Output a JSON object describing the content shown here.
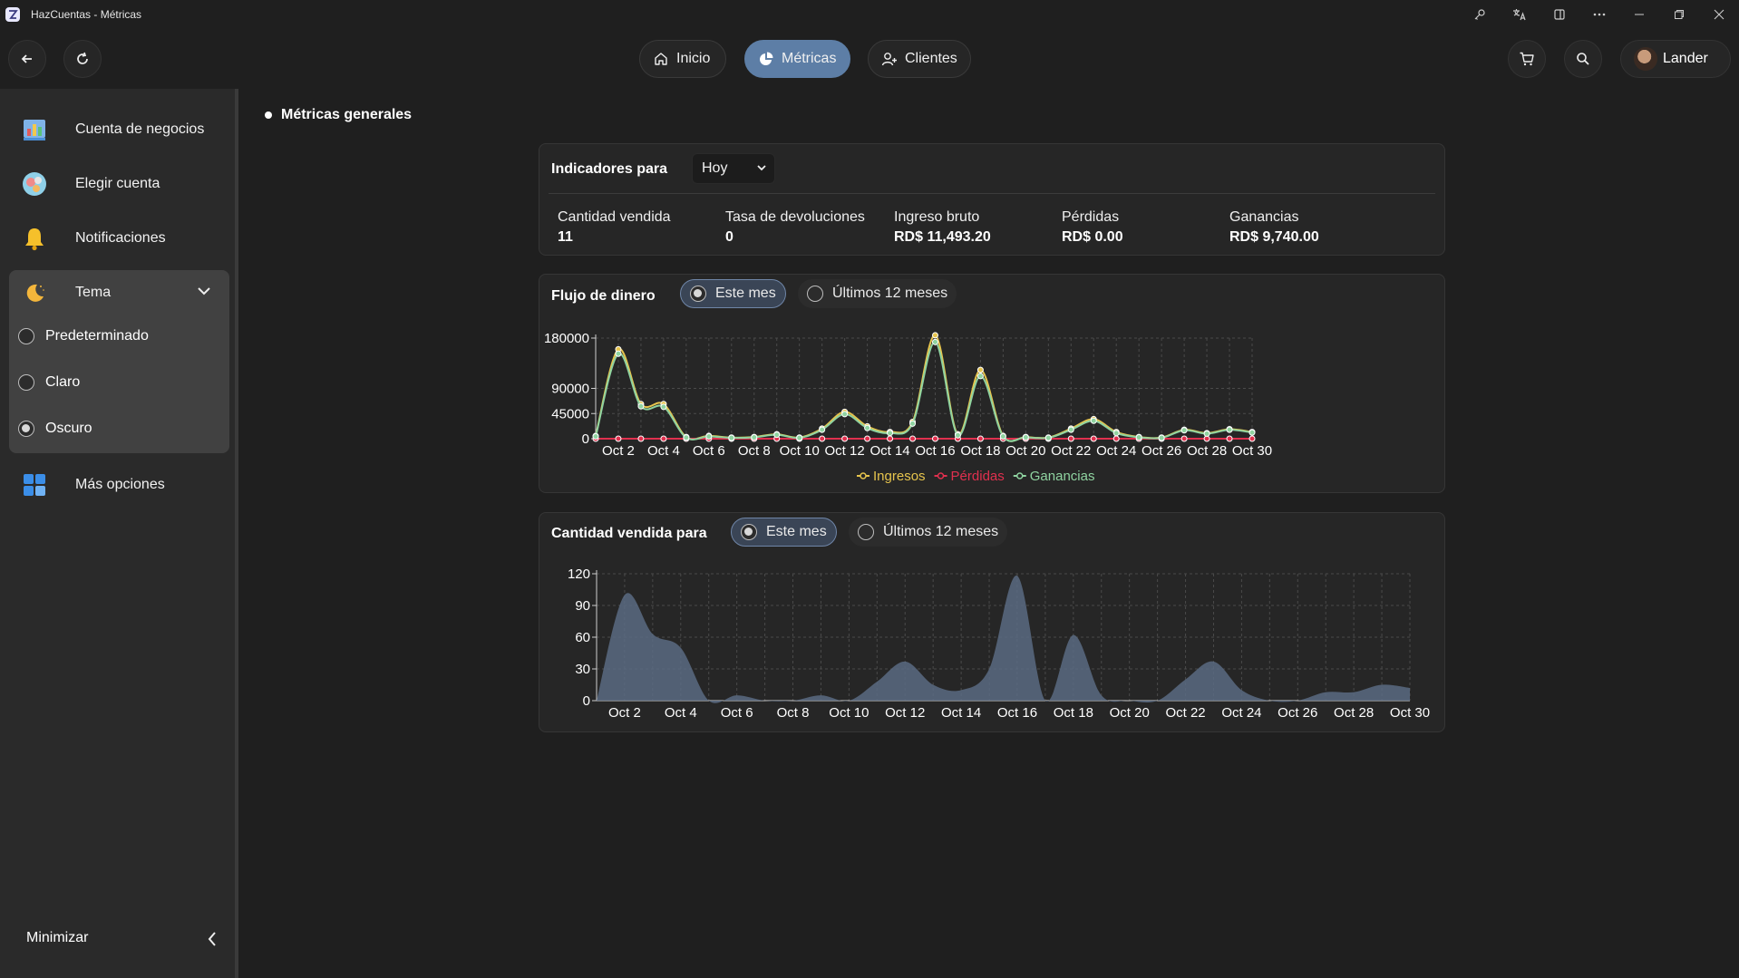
{
  "window": {
    "title": "HazCuentas - Métricas",
    "controls": [
      "key-icon",
      "translate-icon",
      "panel-icon",
      "more-icon",
      "minimize-icon",
      "restore-icon",
      "close-icon"
    ]
  },
  "nav": {
    "tabs": [
      {
        "label": "Inicio",
        "icon": "home-icon"
      },
      {
        "label": "Métricas",
        "icon": "pie-icon"
      },
      {
        "label": "Clientes",
        "icon": "user-plus-icon"
      }
    ],
    "active_tab": "Métricas",
    "user_name": "Lander"
  },
  "sidebar": {
    "items": [
      {
        "label": "Cuenta de negocios",
        "icon": "business-chart-icon"
      },
      {
        "label": "Elegir cuenta",
        "icon": "choose-account-icon"
      },
      {
        "label": "Notificaciones",
        "icon": "bell-icon"
      },
      {
        "label": "Más opciones",
        "icon": "apps-grid-icon"
      }
    ],
    "theme": {
      "label": "Tema",
      "options": [
        "Predeterminado",
        "Claro",
        "Oscuro"
      ],
      "selected": "Oscuro"
    },
    "minimize_label": "Minimizar"
  },
  "main": {
    "section_title": "Métricas generales",
    "indicators": {
      "title": "Indicadores para",
      "period": "Hoy",
      "metrics": [
        {
          "label": "Cantidad vendida",
          "value": "11"
        },
        {
          "label": "Tasa de devoluciones",
          "value": "0"
        },
        {
          "label": "Ingreso bruto",
          "value": "RD$ 11,493.20"
        },
        {
          "label": "Pérdidas",
          "value": "RD$ 0.00"
        },
        {
          "label": "Ganancias",
          "value": "RD$ 9,740.00"
        }
      ]
    },
    "cash_flow": {
      "title": "Flujo de dinero",
      "options": [
        "Este mes",
        "Últimos 12 meses"
      ],
      "selected": "Este mes"
    },
    "qty_sold": {
      "title": "Cantidad vendida para",
      "options": [
        "Este mes",
        "Últimos 12 meses"
      ],
      "selected": "Este mes"
    }
  },
  "colors": {
    "ingresos": "#e6c44d",
    "perdidas": "#e0304e",
    "ganancias": "#8fd3a0",
    "area": "#5a6b82",
    "accent": "#5d7ea6"
  },
  "chart_data": [
    {
      "type": "line",
      "x": [
        1,
        2,
        3,
        4,
        5,
        6,
        7,
        8,
        9,
        10,
        11,
        12,
        13,
        14,
        15,
        16,
        17,
        18,
        19,
        20,
        21,
        22,
        23,
        24,
        25,
        26,
        27,
        28,
        29,
        30
      ],
      "tick_labels": [
        "Oct 2",
        "Oct 4",
        "Oct 6",
        "Oct 8",
        "Oct 10",
        "Oct 12",
        "Oct 14",
        "Oct 16",
        "Oct 18",
        "Oct 20",
        "Oct 22",
        "Oct 24",
        "Oct 26",
        "Oct 28",
        "Oct 30"
      ],
      "y_ticks": [
        0,
        45000,
        90000,
        180000
      ],
      "ylim": [
        0,
        180000
      ],
      "series": [
        {
          "name": "Ingresos",
          "values": [
            5000,
            160000,
            62000,
            62000,
            3000,
            5000,
            2000,
            3000,
            8000,
            2000,
            18000,
            48000,
            22000,
            12000,
            30000,
            185000,
            8000,
            123000,
            5000,
            3000,
            2000,
            18000,
            35000,
            12000,
            3000,
            2000,
            16000,
            10000,
            17000,
            12000
          ]
        },
        {
          "name": "Pérdidas",
          "values": [
            0,
            0,
            0,
            0,
            0,
            0,
            0,
            0,
            0,
            0,
            0,
            0,
            0,
            0,
            0,
            0,
            0,
            0,
            0,
            0,
            0,
            0,
            0,
            0,
            0,
            0,
            0,
            0,
            0,
            0
          ]
        },
        {
          "name": "Ganancias",
          "values": [
            4000,
            152000,
            58000,
            57000,
            2000,
            4000,
            1500,
            2500,
            7000,
            1500,
            16000,
            44000,
            19000,
            10000,
            27000,
            173000,
            6000,
            112000,
            4000,
            2500,
            1500,
            16000,
            32000,
            10000,
            2500,
            1500,
            15000,
            9000,
            16000,
            11000
          ]
        }
      ],
      "legend": "bottom",
      "grid": true
    },
    {
      "type": "area",
      "x": [
        1,
        2,
        3,
        4,
        5,
        6,
        7,
        8,
        9,
        10,
        11,
        12,
        13,
        14,
        15,
        16,
        17,
        18,
        19,
        20,
        21,
        22,
        23,
        24,
        25,
        26,
        27,
        28,
        29,
        30
      ],
      "tick_labels": [
        "Oct 2",
        "Oct 4",
        "Oct 6",
        "Oct 8",
        "Oct 10",
        "Oct 12",
        "Oct 14",
        "Oct 16",
        "Oct 18",
        "Oct 20",
        "Oct 22",
        "Oct 24",
        "Oct 26",
        "Oct 28",
        "Oct 30"
      ],
      "y_ticks": [
        0,
        30,
        60,
        90,
        120
      ],
      "ylim": [
        0,
        120
      ],
      "series": [
        {
          "values": [
            0,
            100,
            63,
            50,
            0,
            5,
            0,
            0,
            5,
            0,
            18,
            37,
            15,
            10,
            30,
            118,
            0,
            62,
            5,
            0,
            0,
            20,
            37,
            10,
            0,
            0,
            8,
            8,
            15,
            12
          ]
        }
      ],
      "grid": true
    }
  ]
}
